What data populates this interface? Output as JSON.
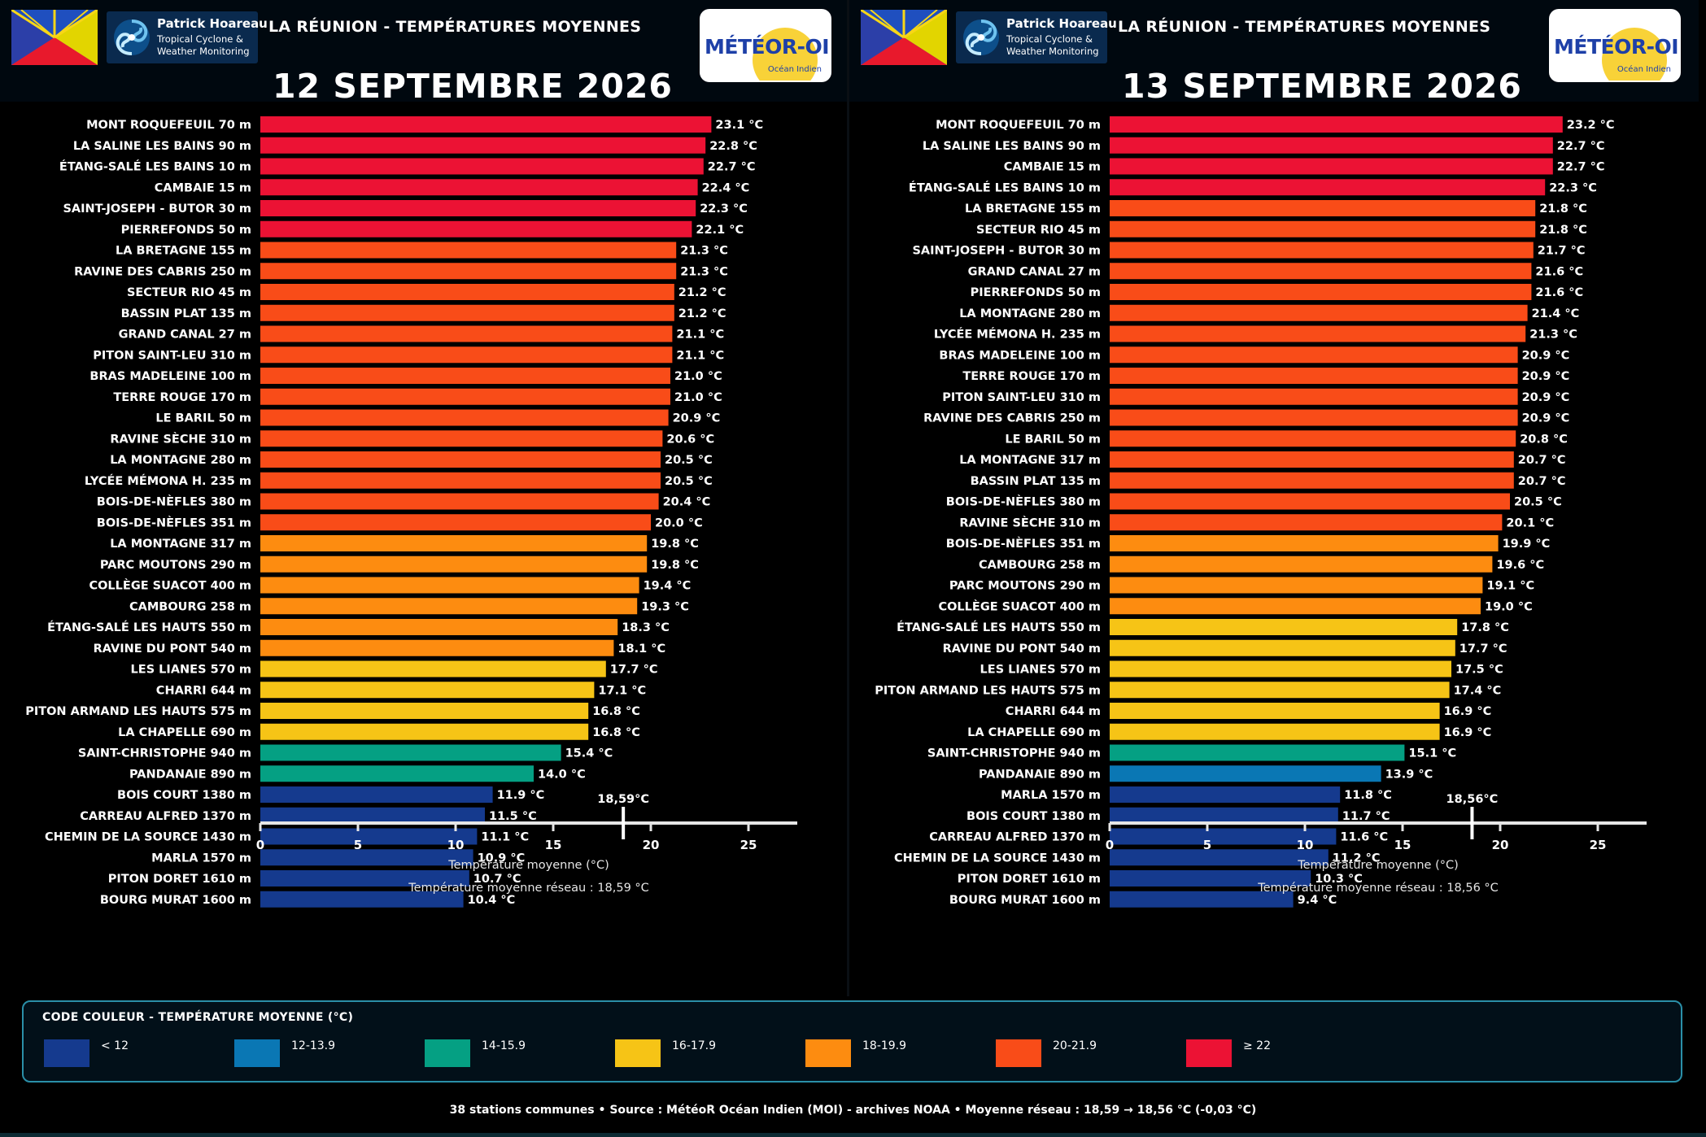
{
  "header": {
    "region_title": "LA RÉUNION - TEMPÉRATURES MOYENNES",
    "brand_name": "Patrick Hoareau",
    "brand_sub": "Tropical Cyclone &\nWeather Monitoring",
    "meteo_logo": "MÉTÉOR-OI",
    "meteo_sub": "Océan Indien"
  },
  "colors": {
    "lt12": "#153a8e",
    "c12_13": "#0a77b4",
    "c14_15": "#05a083",
    "c16_17": "#f6c416",
    "c18_19": "#fd8c10",
    "c20_21": "#f94c18",
    "ge22": "#ec1234",
    "axis": "#e6e6e6",
    "background": "#000000"
  },
  "legend": {
    "title": "CODE COULEUR - TEMPÉRATURE MOYENNE (°C)",
    "items": [
      {
        "label": "< 12",
        "color": "#153a8e"
      },
      {
        "label": "12-13.9",
        "color": "#0a77b4"
      },
      {
        "label": "14-15.9",
        "color": "#05a083"
      },
      {
        "label": "16-17.9",
        "color": "#f6c416"
      },
      {
        "label": "18-19.9",
        "color": "#fd8c10"
      },
      {
        "label": "20-21.9",
        "color": "#f94c18"
      },
      {
        "label": "≥ 22",
        "color": "#ec1234"
      }
    ]
  },
  "footer": "38 stations communes  •  Source : MétéoR Océan Indien (MOI) - archives NOAA  •  Moyenne réseau : 18,59 → 18,56 °C (-0,03 °C)",
  "chart_data": [
    {
      "type": "bar",
      "orientation": "horizontal",
      "title": "12 SEPTEMBRE 2026",
      "xlabel": "Température moyenne (°C)",
      "xlim": [
        0,
        27.5
      ],
      "xticks": [
        0,
        5,
        10,
        15,
        20,
        25
      ],
      "mean_value": 18.59,
      "mean_label": "18,59°C",
      "caption": "Température moyenne réseau : 18,59 °C",
      "value_suffix": " °C",
      "categories": [
        "MONT ROQUEFEUIL 70 m",
        "LA SALINE LES BAINS 90 m",
        "ÉTANG-SALÉ LES BAINS 10 m",
        "CAMBAIE 15 m",
        "SAINT-JOSEPH - BUTOR 30 m",
        "PIERREFONDS 50 m",
        "LA BRETAGNE 155 m",
        "RAVINE DES CABRIS 250 m",
        "SECTEUR RIO 45 m",
        "BASSIN PLAT 135 m",
        "GRAND CANAL 27 m",
        "PITON SAINT-LEU 310 m",
        "BRAS MADELEINE 100 m",
        "TERRE ROUGE 170 m",
        "LE BARIL 50 m",
        "RAVINE SÈCHE 310 m",
        "LA MONTAGNE 280 m",
        "LYCÉE MÉMONA H. 235 m",
        "BOIS-DE-NÈFLES 380 m",
        "BOIS-DE-NÈFLES 351 m",
        "LA MONTAGNE 317 m",
        "PARC MOUTONS 290 m",
        "COLLÈGE SUACOT 400 m",
        "CAMBOURG 258 m",
        "ÉTANG-SALÉ LES HAUTS 550 m",
        "RAVINE DU PONT 540 m",
        "LES LIANES 570 m",
        "CHARRI 644 m",
        "PITON ARMAND LES HAUTS 575 m",
        "LA CHAPELLE 690 m",
        "SAINT-CHRISTOPHE 940 m",
        "PANDANAIE 890 m",
        "BOIS COURT 1380 m",
        "CARREAU ALFRED 1370 m",
        "CHEMIN DE LA SOURCE 1430 m",
        "MARLA 1570 m",
        "PITON DORET 1610 m",
        "BOURG MURAT 1600 m"
      ],
      "values": [
        23.1,
        22.8,
        22.7,
        22.4,
        22.3,
        22.1,
        21.3,
        21.3,
        21.2,
        21.2,
        21.1,
        21.1,
        21.0,
        21.0,
        20.9,
        20.6,
        20.5,
        20.5,
        20.4,
        20.0,
        19.8,
        19.8,
        19.4,
        19.3,
        18.3,
        18.1,
        17.7,
        17.1,
        16.8,
        16.8,
        15.4,
        14.0,
        11.9,
        11.5,
        11.1,
        10.9,
        10.7,
        10.4
      ]
    },
    {
      "type": "bar",
      "orientation": "horizontal",
      "title": "13 SEPTEMBRE 2026",
      "xlabel": "Température moyenne (°C)",
      "xlim": [
        0,
        27.5
      ],
      "xticks": [
        0,
        5,
        10,
        15,
        20,
        25
      ],
      "mean_value": 18.56,
      "mean_label": "18,56°C",
      "caption": "Température moyenne réseau : 18,56 °C",
      "value_suffix": " °C",
      "categories": [
        "MONT ROQUEFEUIL 70 m",
        "LA SALINE LES BAINS 90 m",
        "CAMBAIE 15 m",
        "ÉTANG-SALÉ LES BAINS 10 m",
        "LA BRETAGNE 155 m",
        "SECTEUR RIO 45 m",
        "SAINT-JOSEPH - BUTOR 30 m",
        "GRAND CANAL 27 m",
        "PIERREFONDS 50 m",
        "LA MONTAGNE 280 m",
        "LYCÉE MÉMONA H. 235 m",
        "BRAS MADELEINE 100 m",
        "TERRE ROUGE 170 m",
        "PITON SAINT-LEU 310 m",
        "RAVINE DES CABRIS 250 m",
        "LE BARIL 50 m",
        "LA MONTAGNE 317 m",
        "BASSIN PLAT 135 m",
        "BOIS-DE-NÈFLES 380 m",
        "RAVINE SÈCHE 310 m",
        "BOIS-DE-NÈFLES 351 m",
        "CAMBOURG 258 m",
        "PARC MOUTONS 290 m",
        "COLLÈGE SUACOT 400 m",
        "ÉTANG-SALÉ LES HAUTS 550 m",
        "RAVINE DU PONT 540 m",
        "LES LIANES 570 m",
        "PITON ARMAND LES HAUTS 575 m",
        "CHARRI 644 m",
        "LA CHAPELLE 690 m",
        "SAINT-CHRISTOPHE 940 m",
        "PANDANAIE 890 m",
        "MARLA 1570 m",
        "BOIS COURT 1380 m",
        "CARREAU ALFRED 1370 m",
        "CHEMIN DE LA SOURCE 1430 m",
        "PITON DORET 1610 m",
        "BOURG MURAT 1600 m"
      ],
      "values": [
        23.2,
        22.7,
        22.7,
        22.3,
        21.8,
        21.8,
        21.7,
        21.6,
        21.6,
        21.4,
        21.3,
        20.9,
        20.9,
        20.9,
        20.9,
        20.8,
        20.7,
        20.7,
        20.5,
        20.1,
        19.9,
        19.6,
        19.1,
        19.0,
        17.8,
        17.7,
        17.5,
        17.4,
        16.9,
        16.9,
        15.1,
        13.9,
        11.8,
        11.7,
        11.6,
        11.2,
        10.3,
        9.4
      ]
    }
  ]
}
